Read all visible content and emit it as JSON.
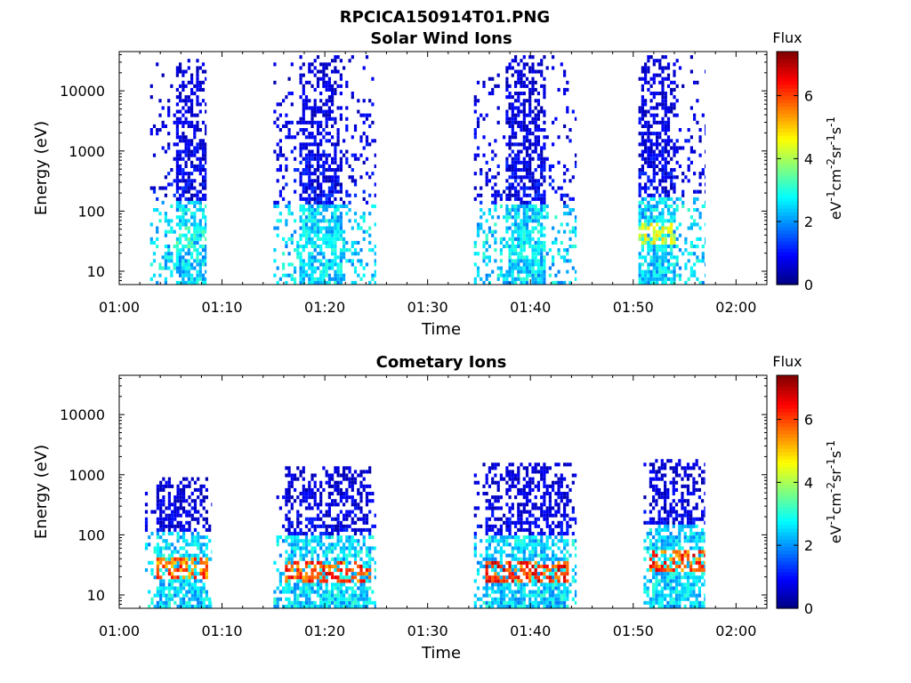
{
  "figure_title": "RPCICA150914T01.PNG",
  "chart_data": [
    {
      "type": "heatmap",
      "title": "Solar Wind Ions",
      "xlabel": "Time",
      "ylabel": "Energy (eV)",
      "y_scale": "log",
      "xlim": [
        "01:00",
        "02:03"
      ],
      "ylim": [
        6,
        45000
      ],
      "x_ticks": [
        "01:00",
        "01:10",
        "01:20",
        "01:30",
        "01:40",
        "01:50",
        "02:00"
      ],
      "y_ticks": [
        "10",
        "100",
        "1000",
        "10000"
      ],
      "colorbar": {
        "title": "Flux",
        "label": "eV-1cm-2sr-1s-1",
        "ticks": [
          "0",
          "2",
          "4",
          "6"
        ],
        "range": [
          0,
          7.4
        ],
        "colormap": "jet"
      },
      "bursts": [
        {
          "start": "01:03",
          "end": "01:08.5",
          "emin": 6,
          "emax": 30000,
          "core_start": "01:05.5",
          "core_end": "01:08.5",
          "high_flux_energy": 35,
          "peak_flux": 3.6
        },
        {
          "start": "01:15",
          "end": "01:25",
          "emin": 6,
          "emax": 35000,
          "core_start": "01:17.5",
          "core_end": "01:21.5",
          "high_flux_energy": 30,
          "peak_flux": 3.2
        },
        {
          "start": "01:34.5",
          "end": "01:44.5",
          "emin": 6,
          "emax": 35000,
          "core_start": "01:37.5",
          "core_end": "01:41.5",
          "high_flux_energy": 30,
          "peak_flux": 3.2
        },
        {
          "start": "01:50.5",
          "end": "01:57",
          "emin": 6,
          "emax": 35000,
          "core_start": "01:50.5",
          "core_end": "01:54",
          "high_flux_energy": 38,
          "peak_flux": 5.0
        }
      ]
    },
    {
      "type": "heatmap",
      "title": "Cometary Ions",
      "xlabel": "Time",
      "ylabel": "Energy (eV)",
      "y_scale": "log",
      "xlim": [
        "01:00",
        "02:03"
      ],
      "ylim": [
        6,
        45000
      ],
      "x_ticks": [
        "01:00",
        "01:10",
        "01:20",
        "01:30",
        "01:40",
        "01:50",
        "02:00"
      ],
      "y_ticks": [
        "10",
        "100",
        "1000",
        "10000"
      ],
      "colorbar": {
        "title": "Flux",
        "label": "eV-1cm-2sr-1s-1",
        "ticks": [
          "0",
          "2",
          "4",
          "6"
        ],
        "range": [
          0,
          7.4
        ],
        "colormap": "jet"
      },
      "bursts": [
        {
          "start": "01:02.5",
          "end": "01:09",
          "emin": 6,
          "emax": 900,
          "core_start": "01:03.5",
          "core_end": "01:08.5",
          "high_flux_energy": 25,
          "peak_flux": 6.5
        },
        {
          "start": "01:15",
          "end": "01:25",
          "emin": 6,
          "emax": 1200,
          "core_start": "01:16",
          "core_end": "01:24.5",
          "high_flux_energy": 22,
          "peak_flux": 6.8
        },
        {
          "start": "01:34.5",
          "end": "01:44.5",
          "emin": 6,
          "emax": 1500,
          "core_start": "01:35.5",
          "core_end": "01:43.5",
          "high_flux_energy": 22,
          "peak_flux": 7.0
        },
        {
          "start": "01:51",
          "end": "01:57",
          "emin": 6,
          "emax": 1800,
          "core_start": "01:51.5",
          "core_end": "01:57",
          "high_flux_energy": 35,
          "peak_flux": 6.8
        }
      ]
    }
  ]
}
